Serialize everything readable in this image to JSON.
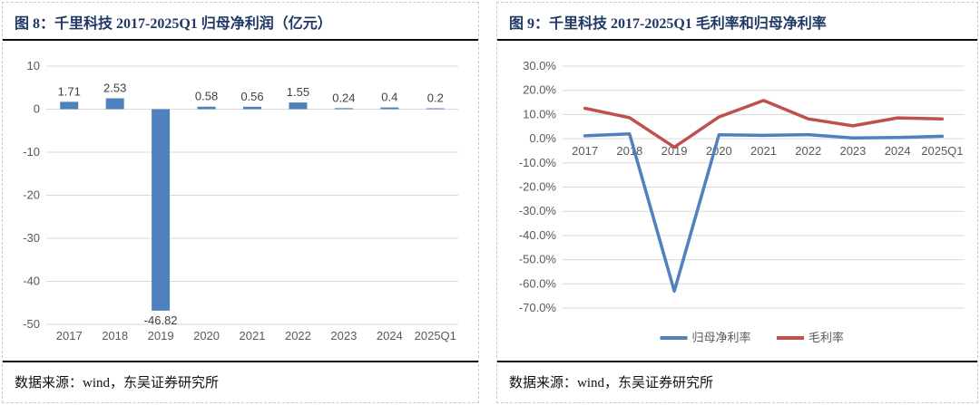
{
  "panels": [
    {
      "title": "图 8：千里科技 2017-2025Q1 归母净利润（亿元）",
      "source": "数据来源：wind，东吴证券研究所"
    },
    {
      "title": "图 9：千里科技 2017-2025Q1 毛利率和归母净利率",
      "source": "数据来源：wind，东吴证券研究所"
    }
  ],
  "colors": {
    "bar_blue": "#4F81BD",
    "line_blue": "#4F81BD",
    "line_red": "#C0504D",
    "gridline": "#d9d9d9",
    "title_navy": "#1f3864"
  },
  "chart_data": [
    {
      "type": "bar",
      "title": "千里科技 2017-2025Q1 归母净利润（亿元）",
      "categories": [
        "2017",
        "2018",
        "2019",
        "2020",
        "2021",
        "2022",
        "2023",
        "2024",
        "2025Q1"
      ],
      "values": [
        1.71,
        2.53,
        -46.82,
        0.58,
        0.56,
        1.55,
        0.24,
        0.4,
        0.2
      ],
      "value_labels": [
        "1.71",
        "2.53",
        "-46.82",
        "0.58",
        "0.56",
        "1.55",
        "0.24",
        "0.4",
        "0.2"
      ],
      "xlabel": "",
      "ylabel": "",
      "ylim": [
        -50,
        10
      ],
      "ytick_step": 10,
      "ytick_format": "plain",
      "grid": true,
      "bar_color": "#4F81BD",
      "legend_position": "none"
    },
    {
      "type": "line",
      "title": "千里科技 2017-2025Q1 毛利率和归母净利率",
      "categories": [
        "2017",
        "2018",
        "2019",
        "2020",
        "2021",
        "2022",
        "2023",
        "2024",
        "2025Q1"
      ],
      "series": [
        {
          "name": "归母净利率",
          "color": "#4F81BD",
          "values": [
            1.2,
            2.0,
            -63.0,
            1.6,
            1.4,
            1.7,
            0.3,
            0.5,
            1.0
          ]
        },
        {
          "name": "毛利率",
          "color": "#C0504D",
          "values": [
            12.6,
            8.7,
            -3.5,
            9.0,
            15.8,
            8.2,
            5.3,
            8.6,
            8.2
          ]
        }
      ],
      "xlabel": "",
      "ylabel": "",
      "ylim": [
        -70,
        30
      ],
      "ytick_step": 10,
      "ytick_format": "percent1",
      "grid": true,
      "legend_position": "bottom"
    }
  ]
}
